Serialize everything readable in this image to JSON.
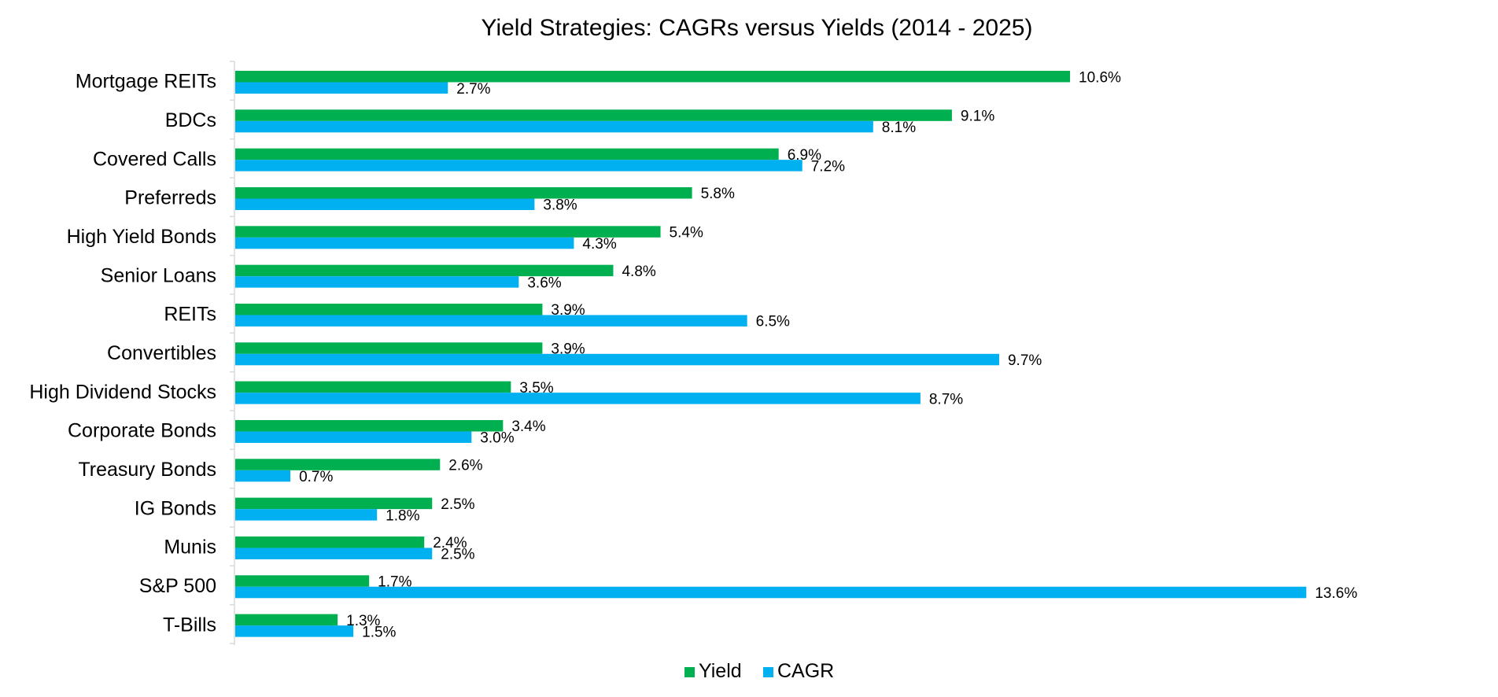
{
  "chart_data": {
    "type": "bar",
    "orientation": "horizontal",
    "title": "Yield Strategies: CAGRs versus Yields (2014 - 2025)",
    "xlabel": "",
    "ylabel": "",
    "xlim": [
      0,
      14
    ],
    "grid": false,
    "legend_position": "bottom",
    "value_format": "percent",
    "categories": [
      "Mortgage REITs",
      "BDCs",
      "Covered Calls",
      "Preferreds",
      "High Yield Bonds",
      "Senior Loans",
      "REITs",
      "Convertibles",
      "High Dividend Stocks",
      "Corporate Bonds",
      "Treasury Bonds",
      "IG Bonds",
      "Munis",
      "S&P 500",
      "T-Bills"
    ],
    "series": [
      {
        "name": "Yield",
        "color": "#00B050",
        "values": [
          10.6,
          9.1,
          6.9,
          5.8,
          5.4,
          4.8,
          3.9,
          3.9,
          3.5,
          3.4,
          2.6,
          2.5,
          2.4,
          1.7,
          1.3
        ],
        "labels": [
          "10.6%",
          "9.1%",
          "6.9%",
          "5.8%",
          "5.4%",
          "4.8%",
          "3.9%",
          "3.9%",
          "3.5%",
          "3.4%",
          "2.6%",
          "2.5%",
          "2.4%",
          "1.7%",
          "1.3%"
        ]
      },
      {
        "name": "CAGR",
        "color": "#00B0F0",
        "values": [
          2.7,
          8.1,
          7.2,
          3.8,
          4.3,
          3.6,
          6.5,
          9.7,
          8.7,
          3.0,
          0.7,
          1.8,
          2.5,
          13.6,
          1.5
        ],
        "labels": [
          "2.7%",
          "8.1%",
          "7.2%",
          "3.8%",
          "4.3%",
          "3.6%",
          "6.5%",
          "9.7%",
          "8.7%",
          "3.0%",
          "0.7%",
          "1.8%",
          "2.5%",
          "13.6%",
          "1.5%"
        ]
      }
    ]
  }
}
